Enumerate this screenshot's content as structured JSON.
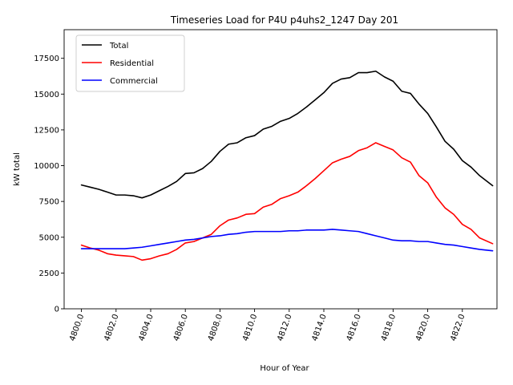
{
  "chart_data": {
    "type": "line",
    "title": "Timeseries Load for P4U p4uhs2_1247  Day 201",
    "xlabel": "Hour of Year",
    "ylabel": "kW total",
    "xlim": [
      4799.0,
      4824.0
    ],
    "ylim": [
      0,
      19500
    ],
    "x_ticks": [
      4800,
      4802,
      4804,
      4806,
      4808,
      4810,
      4812,
      4814,
      4816,
      4818,
      4820,
      4822
    ],
    "x_tick_labels": [
      "4800.0",
      "4802.0",
      "4804.0",
      "4806.0",
      "4808.0",
      "4810.0",
      "4812.0",
      "4814.0",
      "4816.0",
      "4818.0",
      "4820.0",
      "4822.0"
    ],
    "y_ticks": [
      0,
      2500,
      5000,
      7500,
      10000,
      12500,
      15000,
      17500
    ],
    "y_tick_labels": [
      "0",
      "2500",
      "5000",
      "7500",
      "10000",
      "12500",
      "15000",
      "17500"
    ],
    "legend_position": "top-left",
    "x": [
      4800,
      4800.5,
      4801,
      4801.5,
      4802,
      4802.5,
      4803,
      4803.5,
      4804,
      4804.5,
      4805,
      4805.5,
      4806,
      4806.5,
      4807,
      4807.5,
      4808,
      4808.5,
      4809,
      4809.5,
      4810,
      4810.5,
      4811,
      4811.5,
      4812,
      4812.5,
      4813,
      4813.5,
      4814,
      4814.5,
      4815,
      4815.5,
      4816,
      4816.5,
      4817,
      4817.5,
      4818,
      4818.5,
      4819,
      4819.5,
      4820,
      4820.5,
      4821,
      4821.5,
      4822,
      4822.5,
      4823,
      4823.75
    ],
    "series": [
      {
        "name": "Total",
        "color": "#000000",
        "values": [
          8650,
          8500,
          8350,
          8150,
          7950,
          7950,
          7900,
          7750,
          7950,
          8250,
          8550,
          8900,
          9450,
          9500,
          9800,
          10300,
          11000,
          11500,
          11600,
          11950,
          12100,
          12550,
          12750,
          13100,
          13300,
          13650,
          14100,
          14600,
          15100,
          15750,
          16050,
          16150,
          16500,
          16500,
          16600,
          16200,
          15900,
          15200,
          15050,
          14300,
          13650,
          12700,
          11700,
          11150,
          10350,
          9900,
          9300,
          8600
        ]
      },
      {
        "name": "Residential",
        "color": "#ff0000",
        "values": [
          4450,
          4250,
          4100,
          3850,
          3750,
          3700,
          3650,
          3400,
          3500,
          3700,
          3850,
          4150,
          4600,
          4700,
          4950,
          5200,
          5800,
          6200,
          6350,
          6600,
          6650,
          7100,
          7300,
          7700,
          7900,
          8150,
          8600,
          9100,
          9650,
          10200,
          10450,
          10650,
          11050,
          11250,
          11600,
          11350,
          11100,
          10550,
          10250,
          9300,
          8800,
          7800,
          7050,
          6600,
          5900,
          5550,
          4950,
          4550
        ]
      },
      {
        "name": "Commercial",
        "color": "#0000ff",
        "values": [
          4200,
          4200,
          4200,
          4200,
          4200,
          4200,
          4250,
          4300,
          4400,
          4500,
          4600,
          4700,
          4800,
          4850,
          4950,
          5050,
          5100,
          5200,
          5250,
          5350,
          5400,
          5400,
          5400,
          5400,
          5450,
          5450,
          5500,
          5500,
          5500,
          5550,
          5500,
          5450,
          5400,
          5250,
          5100,
          4950,
          4800,
          4750,
          4750,
          4700,
          4700,
          4600,
          4500,
          4450,
          4350,
          4250,
          4150,
          4050
        ]
      }
    ]
  }
}
